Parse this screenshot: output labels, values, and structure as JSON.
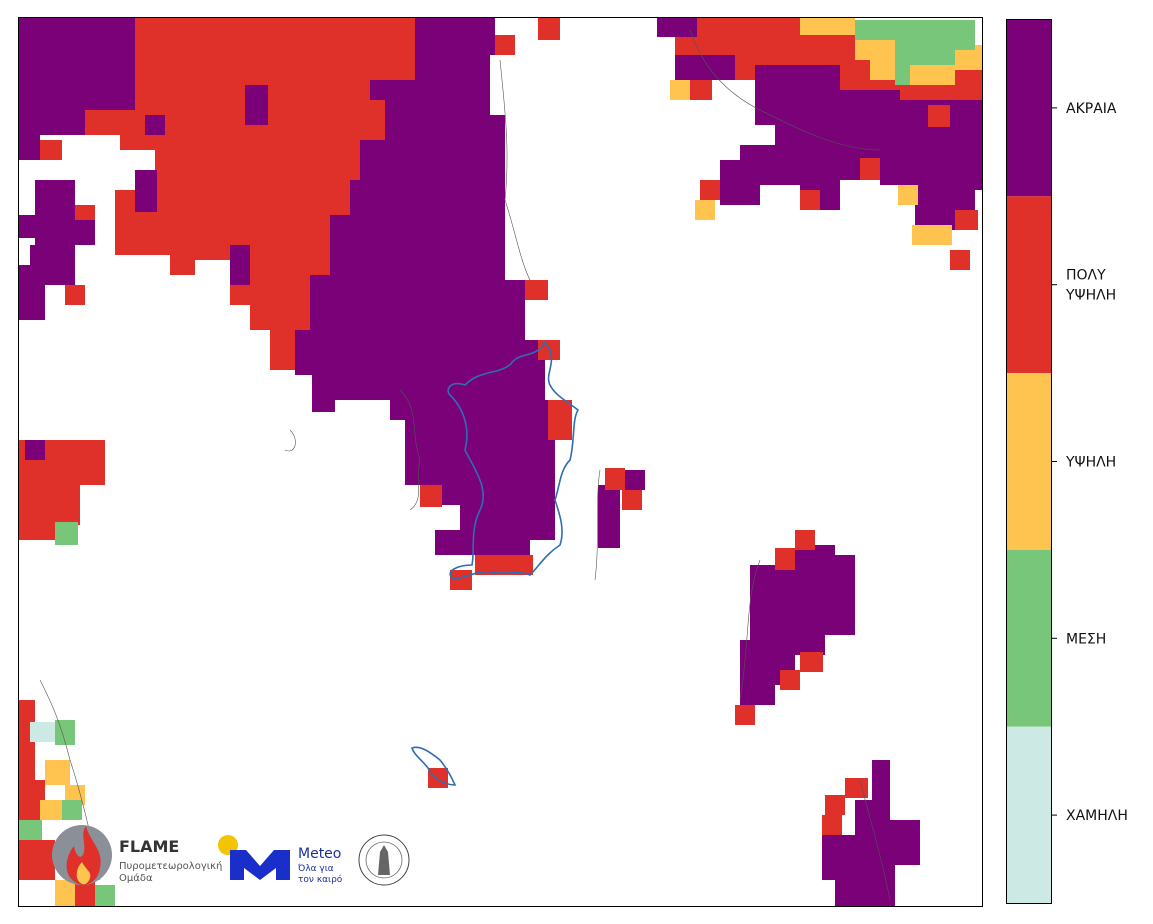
{
  "legend": {
    "items": [
      {
        "lines": [
          "ΑΚΡΑΙΑ"
        ],
        "color": "#7a0177"
      },
      {
        "lines": [
          "ΠΟΛΥ",
          "ΥΨΗΛΗ"
        ],
        "color": "#e0302a"
      },
      {
        "lines": [
          "ΥΨΗΛΗ"
        ],
        "color": "#fec44f"
      },
      {
        "lines": [
          "ΜΕΣΗ"
        ],
        "color": "#78c679"
      },
      {
        "lines": [
          "ΧΑΜΗΛΗ"
        ],
        "color": "#cceae3"
      }
    ]
  },
  "logos": {
    "flame_title": "FLAME",
    "flame_subtitle_lines": [
      "Πυρομετεωρολογική",
      "Ομάδα"
    ],
    "meteo_title": "Meteo",
    "meteo_tagline_lines": [
      "Όλα για",
      "τον καιρό"
    ]
  }
}
